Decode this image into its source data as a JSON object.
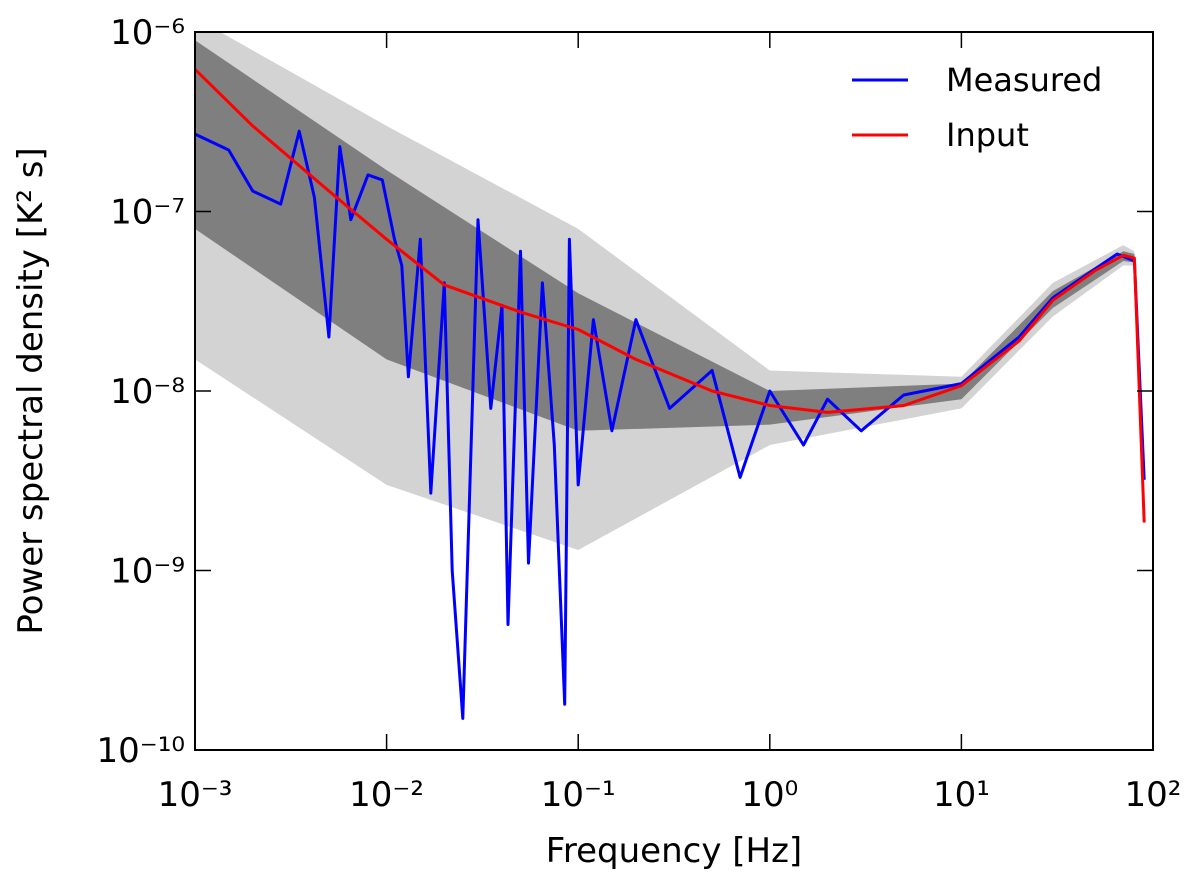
{
  "chart_data": {
    "type": "line",
    "xlabel": "Frequency [Hz]",
    "ylabel": "Power spectral density [K² s]",
    "xscale": "log",
    "yscale": "log",
    "xlim": [
      0.001,
      100
    ],
    "ylim": [
      1e-10,
      1e-06
    ],
    "xticks": [
      {
        "value": 0.001,
        "label": "10⁻³"
      },
      {
        "value": 0.01,
        "label": "10⁻²"
      },
      {
        "value": 0.1,
        "label": "10⁻¹"
      },
      {
        "value": 1,
        "label": "10⁰"
      },
      {
        "value": 10,
        "label": "10¹"
      },
      {
        "value": 100,
        "label": "10²"
      }
    ],
    "yticks": [
      {
        "value": 1e-10,
        "label": "10⁻¹⁰"
      },
      {
        "value": 1e-09,
        "label": "10⁻⁹"
      },
      {
        "value": 1e-08,
        "label": "10⁻⁸"
      },
      {
        "value": 1e-07,
        "label": "10⁻⁷"
      },
      {
        "value": 1e-06,
        "label": "10⁻⁶"
      }
    ],
    "legend": "upper right",
    "bands": [
      {
        "color": "#d3d3d3",
        "x": [
          0.001,
          0.01,
          0.1,
          1,
          10,
          30,
          70,
          80,
          90
        ],
        "upper": [
          1.2e-06,
          3e-07,
          8e-08,
          1.3e-08,
          1.2e-08,
          4e-08,
          6.5e-08,
          6e-08,
          2e-09
        ],
        "lower": [
          1.5e-08,
          3e-09,
          1.3e-09,
          5e-09,
          8e-09,
          2.6e-08,
          5e-08,
          5e-08,
          1.8e-09
        ]
      },
      {
        "color": "#7f7f7f",
        "x": [
          0.001,
          0.01,
          0.1,
          1,
          10,
          30,
          70,
          80,
          90
        ],
        "upper": [
          9e-07,
          1.7e-07,
          3.5e-08,
          1e-08,
          1.1e-08,
          3.6e-08,
          6e-08,
          5.8e-08,
          1.9e-09
        ],
        "lower": [
          8e-08,
          1.5e-08,
          6e-09,
          6.5e-09,
          9e-09,
          2.9e-08,
          5.3e-08,
          5.2e-08,
          1.8e-09
        ]
      }
    ],
    "series": [
      {
        "name": "Measured",
        "color": "#0000ff",
        "x": [
          0.001,
          0.0015,
          0.002,
          0.0028,
          0.0035,
          0.0042,
          0.005,
          0.0057,
          0.0065,
          0.008,
          0.0095,
          0.011,
          0.012,
          0.013,
          0.015,
          0.017,
          0.02,
          0.022,
          0.025,
          0.03,
          0.035,
          0.04,
          0.043,
          0.05,
          0.055,
          0.065,
          0.075,
          0.085,
          0.09,
          0.1,
          0.12,
          0.15,
          0.2,
          0.3,
          0.5,
          0.7,
          1,
          1.5,
          2,
          3,
          5,
          10,
          20,
          30,
          50,
          65,
          80,
          90
        ],
        "values": [
          2.7e-07,
          2.2e-07,
          1.3e-07,
          1.1e-07,
          2.8e-07,
          1.2e-07,
          2e-08,
          2.3e-07,
          9e-08,
          1.6e-07,
          1.5e-07,
          7e-08,
          5e-08,
          1.2e-08,
          7e-08,
          2.7e-09,
          4e-08,
          1e-09,
          1.5e-10,
          9e-08,
          8e-09,
          3e-08,
          5e-10,
          6e-08,
          1.1e-09,
          4e-08,
          5e-09,
          1.8e-10,
          7e-08,
          3e-09,
          2.5e-08,
          6e-09,
          2.5e-08,
          8e-09,
          1.3e-08,
          3.3e-09,
          1e-08,
          5e-09,
          9e-09,
          6e-09,
          9.5e-09,
          1.1e-08,
          2e-08,
          3.3e-08,
          4.8e-08,
          5.8e-08,
          5.3e-08,
          3.2e-09
        ]
      },
      {
        "name": "Input",
        "color": "#ff0000",
        "x": [
          0.001,
          0.002,
          0.005,
          0.01,
          0.02,
          0.05,
          0.1,
          0.2,
          0.5,
          1,
          2,
          5,
          10,
          20,
          30,
          50,
          70,
          80,
          90
        ],
        "values": [
          6.2e-07,
          3e-07,
          1.3e-07,
          7e-08,
          3.9e-08,
          2.75e-08,
          2.2e-08,
          1.5e-08,
          1e-08,
          8.3e-09,
          7.6e-09,
          8.3e-09,
          1.07e-08,
          1.9e-08,
          3.2e-08,
          4.7e-08,
          5.7e-08,
          5.5e-08,
          1.85e-09
        ]
      }
    ]
  }
}
